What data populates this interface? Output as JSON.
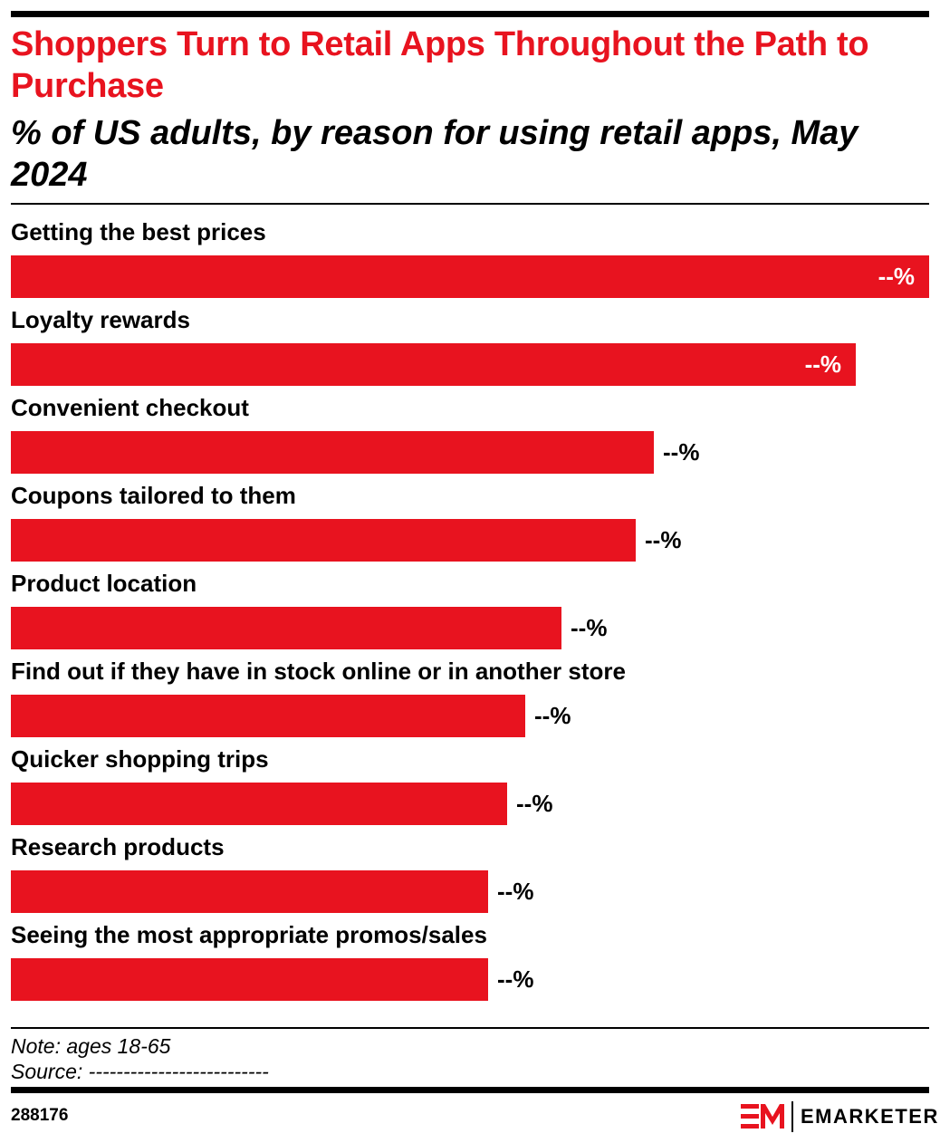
{
  "header": {
    "title": "Shoppers Turn to Retail Apps Throughout the Path to Purchase",
    "subtitle": "% of US adults, by reason for using retail apps, May 2024"
  },
  "chart_data": {
    "type": "bar",
    "orientation": "horizontal",
    "title": "Shoppers Turn to Retail Apps Throughout the Path to Purchase",
    "subtitle": "% of US adults, by reason for using retail apps, May 2024",
    "categories": [
      "Getting the best prices",
      "Loyalty rewards",
      "Convenient checkout",
      "Coupons tailored to them",
      "Product location",
      "Find out if they have in stock online or in another store",
      "Quicker shopping trips",
      "Research products",
      "Seeing the most appropriate promos/sales"
    ],
    "values": [
      100,
      92,
      70,
      68,
      60,
      56,
      54,
      52,
      52
    ],
    "value_labels": [
      "--%",
      "--%",
      "--%",
      "--%",
      "--%",
      "--%",
      "--%",
      "--%",
      "--%"
    ],
    "xlim": [
      0,
      100
    ],
    "grid": false,
    "legend": "none",
    "bar_color": "#e8131f"
  },
  "footer": {
    "note": "Note: ages 18-65",
    "source": "Source: --------------------------",
    "chart_id": "288176",
    "brand": "EMARKETER"
  },
  "colors": {
    "accent": "#e8131f",
    "text": "#000000",
    "background": "#ffffff"
  }
}
